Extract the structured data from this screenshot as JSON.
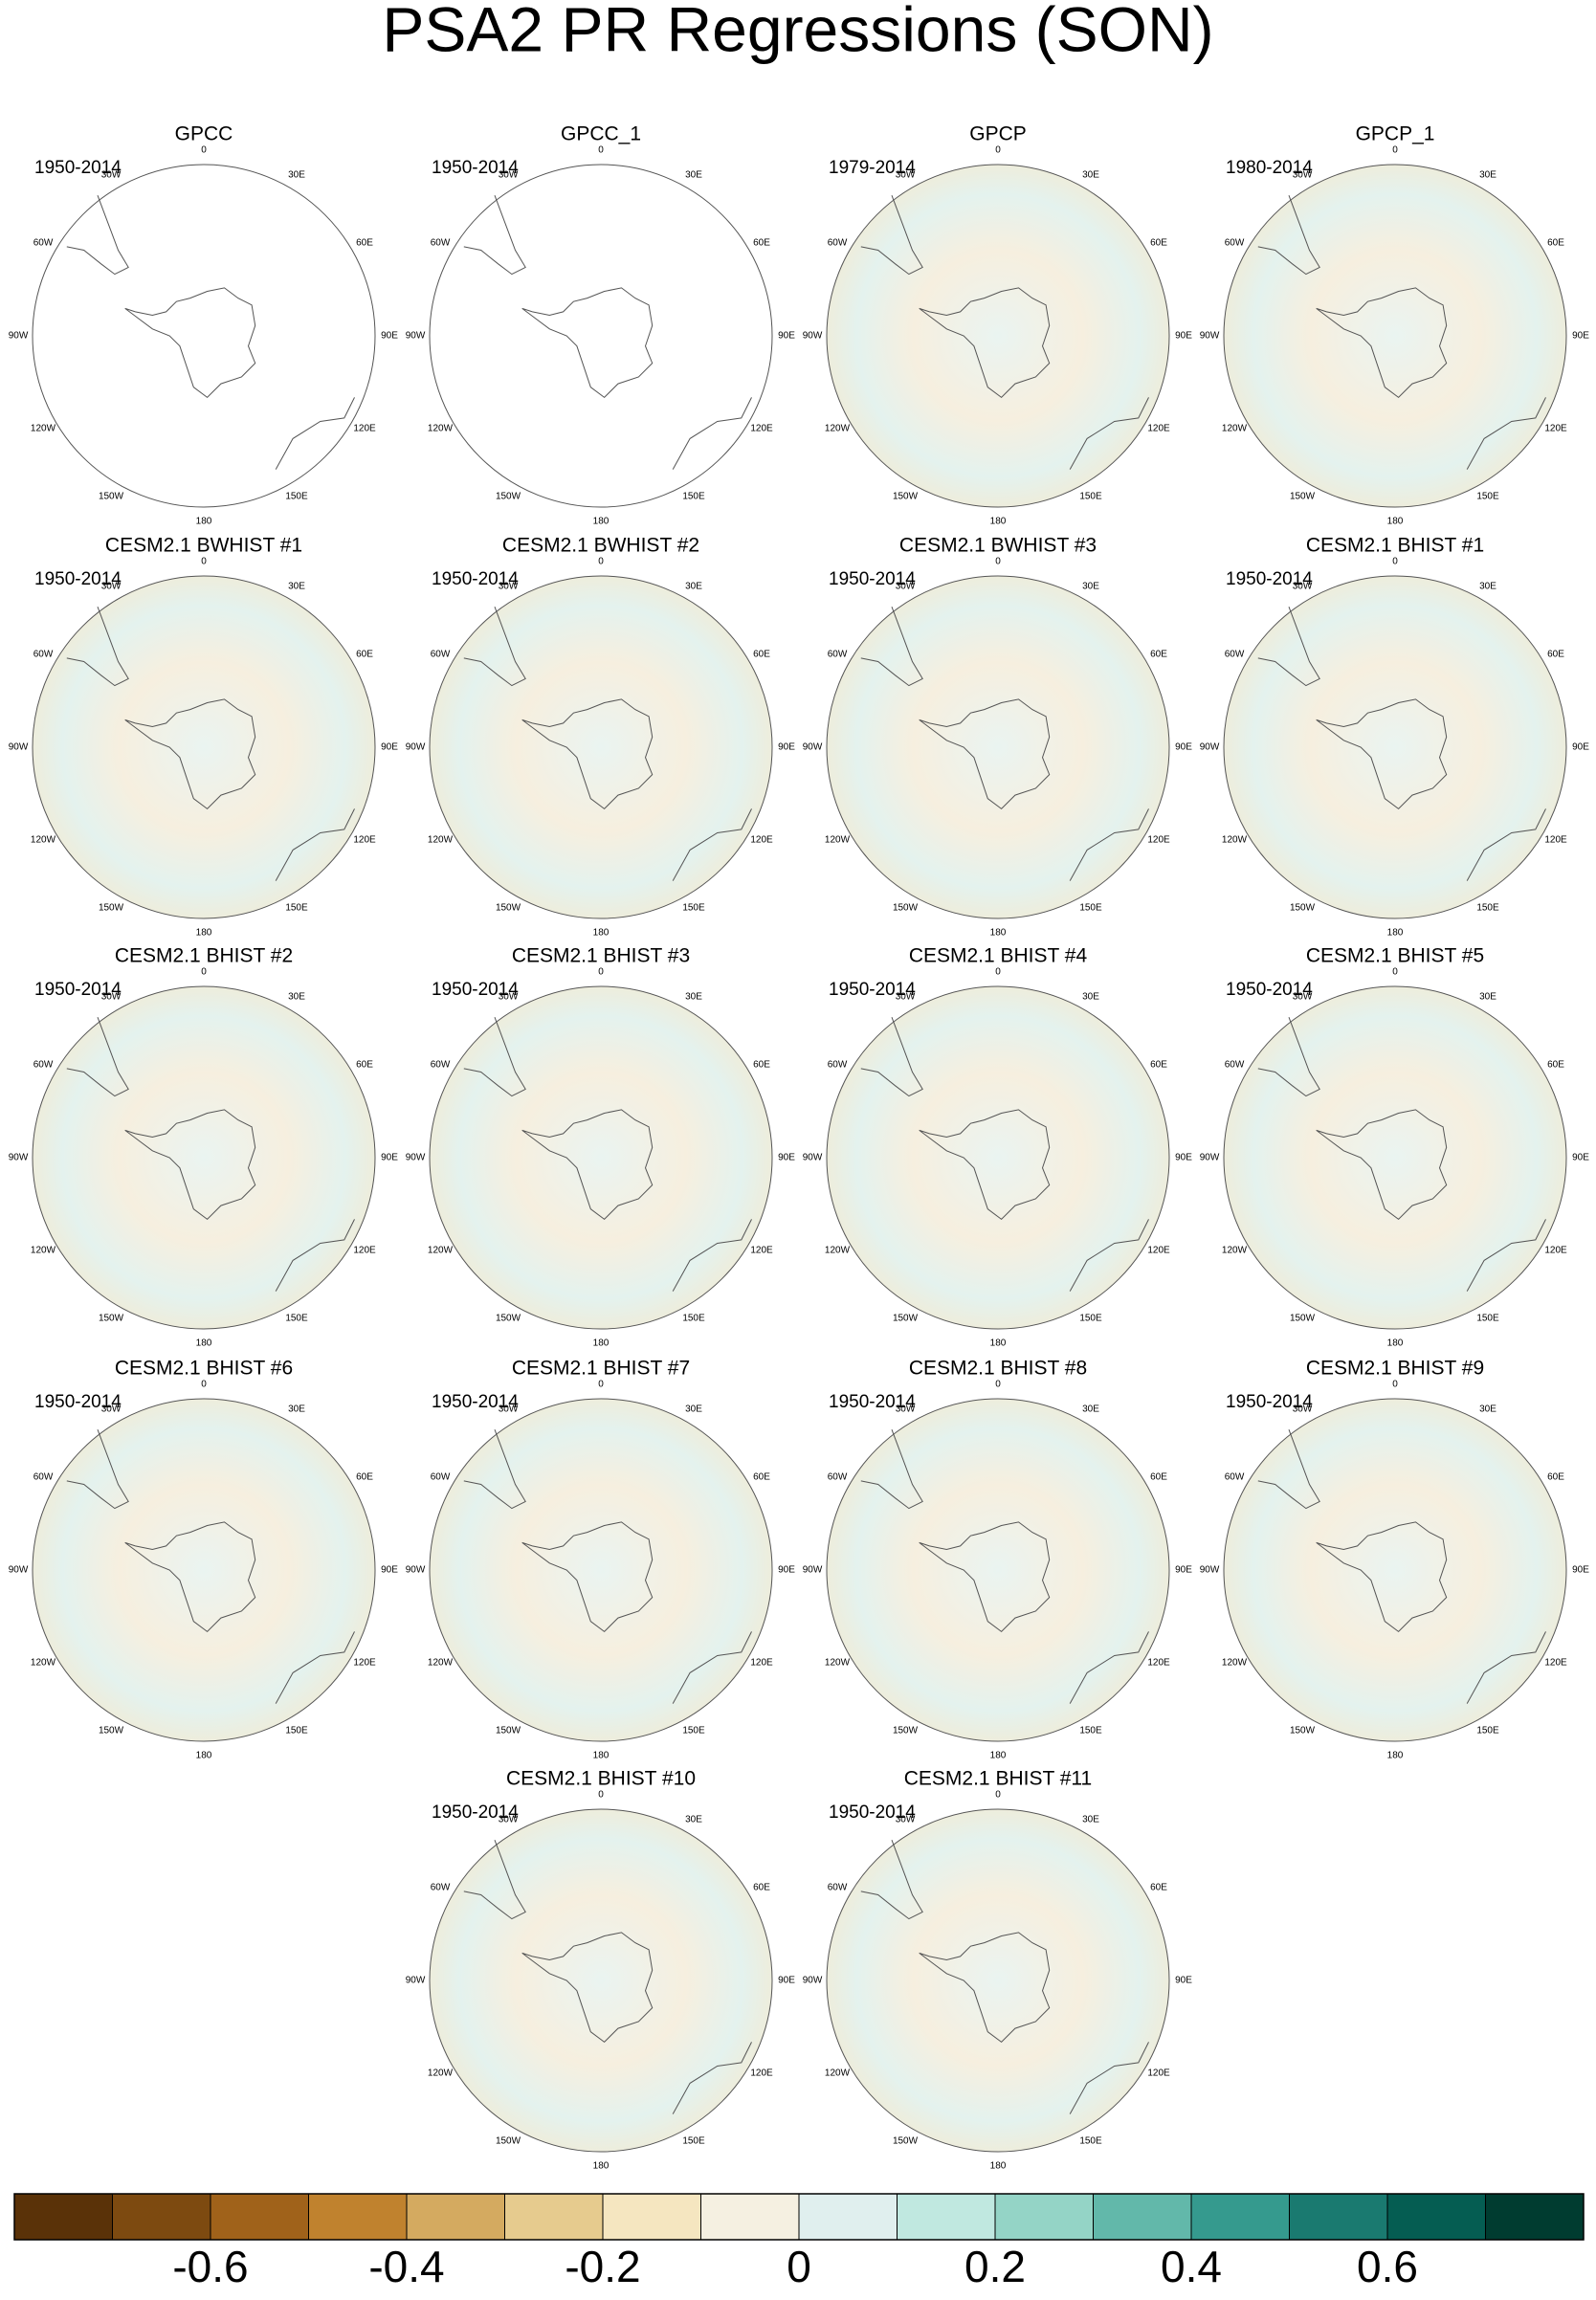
{
  "title": "PSA2 PR Regressions (SON)",
  "longitude_labels": [
    "0",
    "30E",
    "60E",
    "90E",
    "120E",
    "150E",
    "180",
    "150W",
    "120W",
    "90W",
    "60W",
    "30W"
  ],
  "panels": [
    {
      "title": "GPCC",
      "period": "1950-2014"
    },
    {
      "title": "GPCC_1",
      "period": "1950-2014"
    },
    {
      "title": "GPCP",
      "period": "1979-2014"
    },
    {
      "title": "GPCP_1",
      "period": "1980-2014"
    },
    {
      "title": "CESM2.1 BWHIST #1",
      "period": "1950-2014"
    },
    {
      "title": "CESM2.1 BWHIST #2",
      "period": "1950-2014"
    },
    {
      "title": "CESM2.1 BWHIST #3",
      "period": "1950-2014"
    },
    {
      "title": "CESM2.1 BHIST #1",
      "period": "1950-2014"
    },
    {
      "title": "CESM2.1 BHIST #2",
      "period": "1950-2014"
    },
    {
      "title": "CESM2.1 BHIST #3",
      "period": "1950-2014"
    },
    {
      "title": "CESM2.1 BHIST #4",
      "period": "1950-2014"
    },
    {
      "title": "CESM2.1 BHIST #5",
      "period": "1950-2014"
    },
    {
      "title": "CESM2.1 BHIST #6",
      "period": "1950-2014"
    },
    {
      "title": "CESM2.1 BHIST #7",
      "period": "1950-2014"
    },
    {
      "title": "CESM2.1 BHIST #8",
      "period": "1950-2014"
    },
    {
      "title": "CESM2.1 BHIST #9",
      "period": "1950-2014"
    },
    {
      "title": "CESM2.1 BHIST #10",
      "period": "1950-2014"
    },
    {
      "title": "CESM2.1 BHIST #11",
      "period": "1950-2014"
    }
  ],
  "colorbar": {
    "xlim": [
      -0.8,
      0.8
    ],
    "colors": [
      "#5a3208",
      "#7d4a10",
      "#a0621a",
      "#c0822e",
      "#d4aa60",
      "#e6cb8e",
      "#f5e6c0",
      "#f5f0e1",
      "#e0efee",
      "#c0e8e0",
      "#94d4c6",
      "#62b8aa",
      "#359a8e",
      "#1a7a70",
      "#055d52",
      "#003c30"
    ],
    "ticks": [
      -0.6,
      -0.4,
      -0.2,
      0,
      0.2,
      0.4,
      0.6
    ]
  }
}
